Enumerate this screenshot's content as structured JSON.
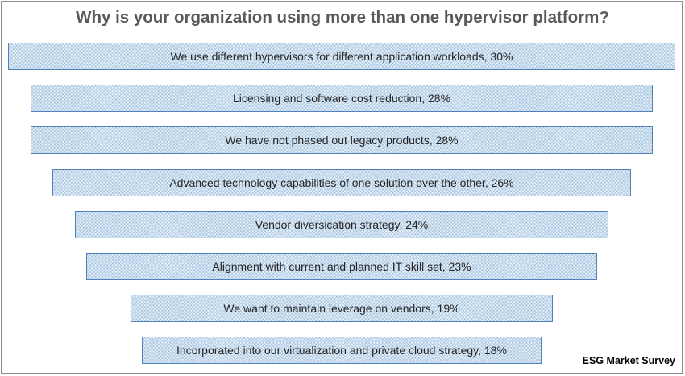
{
  "title": "Why is your organization using more than one hypervisor platform?",
  "source": "ESG Market Survey",
  "colors": {
    "bar_border": "#4f81bd",
    "bar_fill": "#e4f0f8",
    "title": "#595959"
  },
  "chart_data": {
    "type": "bar",
    "orientation": "horizontal-funnel",
    "title": "Why is your organization using more than one hypervisor platform?",
    "unit": "%",
    "categories": [
      "We use different hypervisors for different application workloads",
      "Licensing and software cost reduction",
      "We have not phased out legacy products",
      "Advanced technology capabilities of one solution over the other",
      "Vendor diversication strategy",
      "Alignment with current and planned IT skill set",
      "We want to maintain leverage on vendors",
      "Incorporated into our virtualization and private cloud strategy"
    ],
    "values": [
      30,
      28,
      28,
      26,
      24,
      23,
      19,
      18
    ],
    "labels": [
      "We use different hypervisors for different application workloads, 30%",
      "Licensing and software cost reduction, 28%",
      "We have not phased out legacy products, 28%",
      "Advanced technology capabilities of one solution over the other, 26%",
      "Vendor diversication strategy, 24%",
      "Alignment with current and planned IT skill set, 23%",
      "We want to maintain leverage on vendors, 19%",
      "Incorporated into our virtualization and private cloud strategy, 18%"
    ]
  }
}
